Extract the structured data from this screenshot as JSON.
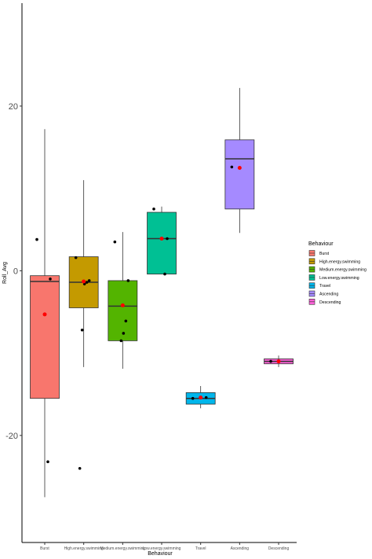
{
  "chart_data": {
    "type": "box",
    "title": "",
    "xlabel": "Behaviour",
    "ylabel": "Roll_Avg",
    "ylim": [
      -33.0,
      32.5
    ],
    "yticks": [
      -20,
      0,
      20
    ],
    "grid": false,
    "legend_title": "Behaviour",
    "legend_position": "right",
    "categories": [
      "Burst",
      "High.energy.swimming",
      "Medium.energy.swimming",
      "Low.energy.swimming",
      "Travel",
      "Ascending",
      "Descending"
    ],
    "series": [
      {
        "name": "Burst",
        "color": "#F8766D",
        "q1": -15.5,
        "median": -1.3,
        "q3": -0.6,
        "whisker_low": -27.5,
        "whisker_high": 17.2,
        "mean": -5.3,
        "points": [
          3.8,
          -1.0,
          -23.2
        ]
      },
      {
        "name": "High.energy.swimming",
        "color": "#C49A00",
        "q1": -4.5,
        "median": -1.4,
        "q3": 1.7,
        "whisker_low": -11.7,
        "whisker_high": 11.0,
        "mean": -1.3,
        "points": [
          1.6,
          -1.2,
          -1.4,
          -1.6,
          -7.2,
          -24.0
        ]
      },
      {
        "name": "Medium.energy.swimming",
        "color": "#53B400",
        "q1": -8.5,
        "median": -4.3,
        "q3": -1.2,
        "whisker_low": -11.9,
        "whisker_high": 4.7,
        "mean": -4.2,
        "points": [
          3.5,
          -1.2,
          -6.1,
          -7.6,
          -8.5
        ]
      },
      {
        "name": "Low.energy.swimming",
        "color": "#00C094",
        "q1": -0.4,
        "median": 3.9,
        "q3": 7.1,
        "whisker_low": -0.4,
        "whisker_high": 7.8,
        "mean": 3.9,
        "points": [
          7.5,
          3.9,
          -0.4
        ]
      },
      {
        "name": "Travel",
        "color": "#00B6EB",
        "q1": -16.2,
        "median": -15.5,
        "q3": -14.8,
        "whisker_low": -16.7,
        "whisker_high": -14.0,
        "mean": -15.4,
        "points": [
          -15.5,
          -15.4
        ]
      },
      {
        "name": "Ascending",
        "color": "#A58AFF",
        "q1": 7.5,
        "median": 13.6,
        "q3": 15.9,
        "whisker_low": 4.6,
        "whisker_high": 22.2,
        "mean": 12.5,
        "points": [
          12.6
        ]
      },
      {
        "name": "Descending",
        "color": "#FB61D7",
        "q1": -11.3,
        "median": -11.0,
        "q3": -10.7,
        "whisker_low": -11.7,
        "whisker_high": -10.3,
        "mean": -11.0,
        "points": [
          -11.0
        ]
      }
    ]
  }
}
